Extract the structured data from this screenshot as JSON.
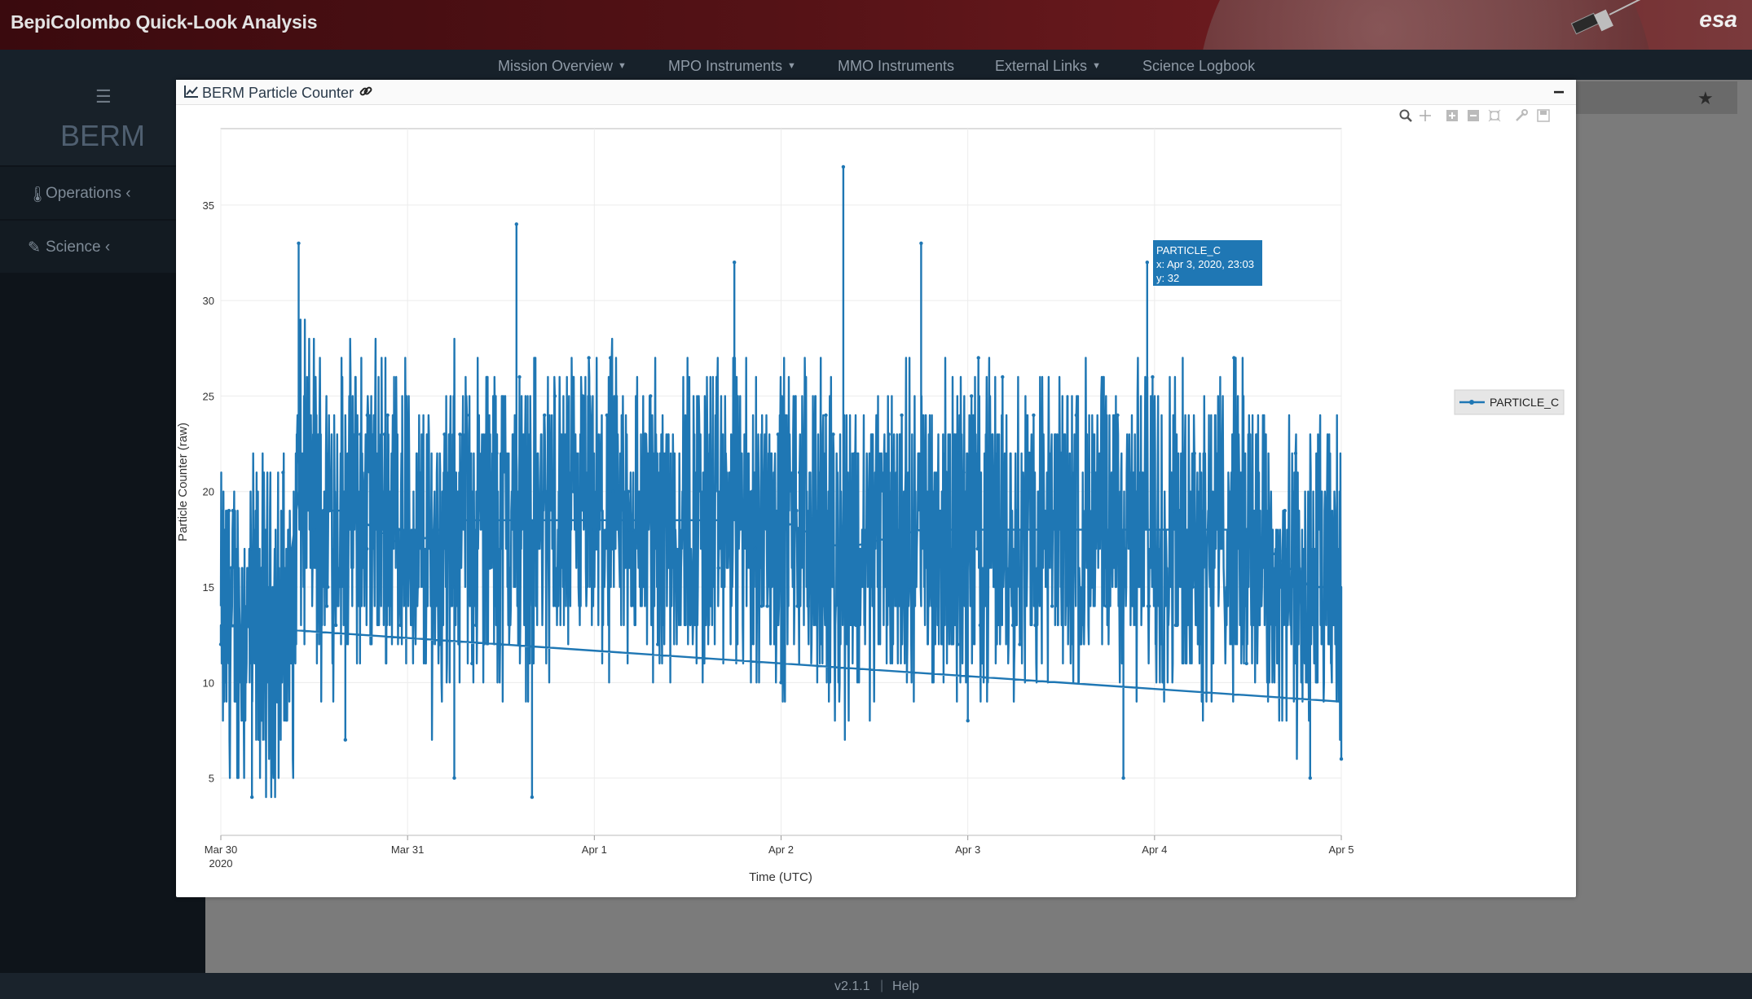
{
  "header": {
    "app_title": "BepiColombo Quick-Look Analysis",
    "logo_text": "esa"
  },
  "nav": {
    "items": [
      {
        "label": "Mission Overview",
        "dropdown": true
      },
      {
        "label": "MPO Instruments",
        "dropdown": true
      },
      {
        "label": "MMO Instruments",
        "dropdown": false
      },
      {
        "label": "External Links",
        "dropdown": true
      },
      {
        "label": "Science Logbook",
        "dropdown": false
      }
    ]
  },
  "sidebar": {
    "instrument": "BERM",
    "items": [
      {
        "label": "Operations",
        "icon": "thermometer-icon"
      },
      {
        "label": "Science",
        "icon": "wand-icon"
      }
    ]
  },
  "modal": {
    "title": "BERM Particle Counter"
  },
  "footer": {
    "version": "v2.1.1",
    "help": "Help"
  },
  "colors": {
    "series": "#1f77b4",
    "header_bg": "#551216",
    "nav_bg": "#17212a"
  },
  "chart_data": {
    "type": "line",
    "xlabel": "Time (UTC)",
    "ylabel": "Particle Counter (raw)",
    "x_ticks": [
      "Mar 30",
      "Mar 31",
      "Apr 1",
      "Apr 2",
      "Apr 3",
      "Apr 4",
      "Apr 5"
    ],
    "x_tick_sub": "2020",
    "xlim_days": [
      0,
      6
    ],
    "ylim": [
      2,
      39
    ],
    "y_ticks": [
      5,
      10,
      15,
      20,
      25,
      30,
      35
    ],
    "grid": true,
    "legend_position": "right",
    "series": [
      {
        "name": "PARTICLE_C",
        "sample_points": [
          {
            "x": "2020-03-30 00:00",
            "y": 12
          },
          {
            "x": "2020-03-30 04:00",
            "y": 4
          },
          {
            "x": "2020-03-30 08:00",
            "y": 21
          },
          {
            "x": "2020-03-30 10:00",
            "y": 33
          },
          {
            "x": "2020-03-30 12:00",
            "y": 18
          },
          {
            "x": "2020-03-30 16:00",
            "y": 7
          },
          {
            "x": "2020-03-31 00:00",
            "y": 20
          },
          {
            "x": "2020-03-31 06:00",
            "y": 5
          },
          {
            "x": "2020-03-31 14:00",
            "y": 34
          },
          {
            "x": "2020-03-31 16:00",
            "y": 4
          },
          {
            "x": "2020-04-01 00:00",
            "y": 18
          },
          {
            "x": "2020-04-01 18:00",
            "y": 32
          },
          {
            "x": "2020-04-02 00:00",
            "y": 10
          },
          {
            "x": "2020-04-02 08:00",
            "y": 37
          },
          {
            "x": "2020-04-02 18:00",
            "y": 33
          },
          {
            "x": "2020-04-03 00:00",
            "y": 8
          },
          {
            "x": "2020-04-03 12:00",
            "y": 22
          },
          {
            "x": "2020-04-03 20:00",
            "y": 5
          },
          {
            "x": "2020-04-03 23:03",
            "y": 32
          },
          {
            "x": "2020-04-04 12:00",
            "y": 16
          },
          {
            "x": "2020-04-04 20:00",
            "y": 5
          },
          {
            "x": "2020-04-05 00:00",
            "y": 6
          }
        ]
      }
    ],
    "tooltip": {
      "series": "PARTICLE_C",
      "x_text": "x: Apr 3, 2020, 23:03",
      "y_text": "y: 32"
    }
  }
}
